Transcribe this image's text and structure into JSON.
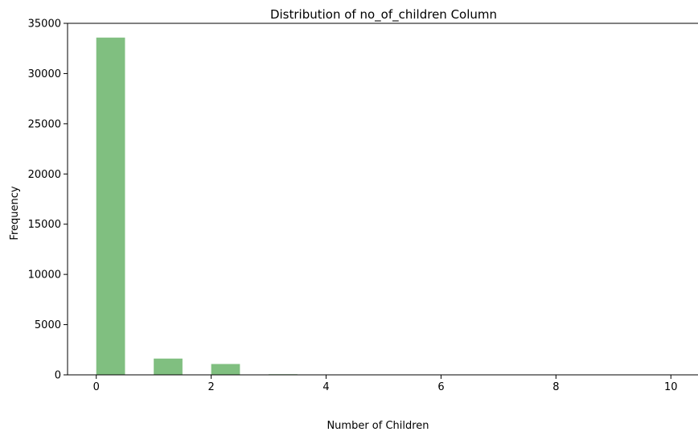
{
  "chart_data": {
    "type": "bar",
    "title": "Distribution of no_of_children Column",
    "xlabel": "Number of Children",
    "ylabel": "Frequency",
    "xlim": [
      -0.5,
      10.5
    ],
    "ylim": [
      0,
      35000
    ],
    "xticks": [
      0,
      2,
      4,
      6,
      8,
      10
    ],
    "yticks": [
      0,
      5000,
      10000,
      15000,
      20000,
      25000,
      30000,
      35000
    ],
    "bin_width": 0.5,
    "bins": [
      {
        "x": 0,
        "value": 33580
      },
      {
        "x": 1,
        "value": 1620
      },
      {
        "x": 2,
        "value": 1080
      },
      {
        "x": 3,
        "value": 60
      },
      {
        "x": 9.5,
        "value": 5
      }
    ],
    "bar_color": "#80bf80",
    "grid": false,
    "legend": "none"
  }
}
